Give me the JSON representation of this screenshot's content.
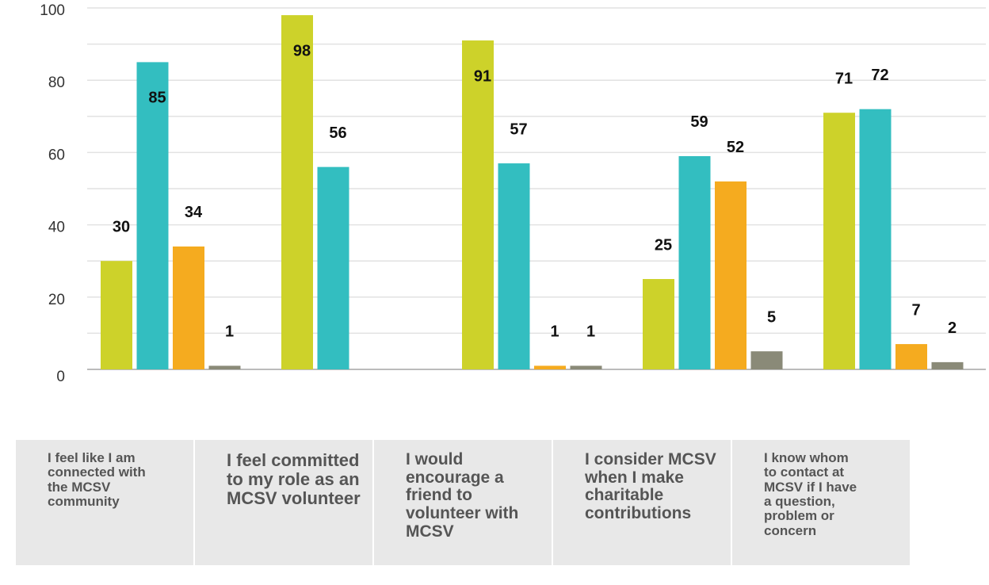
{
  "chart_data": {
    "type": "bar",
    "categories": [
      "I feel like I am connected with the MCSV community",
      "I feel committed to my role as an MCSV volunteer",
      "I would encourage a friend to volunteer with MCSV",
      "I consider MCSV when I make charitable contributions",
      "I know whom to contact at MCSV if I have a question, problem or concern"
    ],
    "series": [
      {
        "color": "#cdd22a",
        "values": [
          30,
          98,
          91,
          25,
          71
        ]
      },
      {
        "color": "#33bec0",
        "values": [
          85,
          56,
          57,
          59,
          72
        ]
      },
      {
        "color": "#f5ab1f",
        "values": [
          34,
          null,
          1,
          52,
          7
        ]
      },
      {
        "color": "#8a8a78",
        "values": [
          1,
          null,
          1,
          5,
          2
        ]
      }
    ],
    "ylim": [
      0,
      100
    ],
    "yticks": [
      0,
      20,
      40,
      60,
      80,
      100
    ],
    "grid": true
  }
}
